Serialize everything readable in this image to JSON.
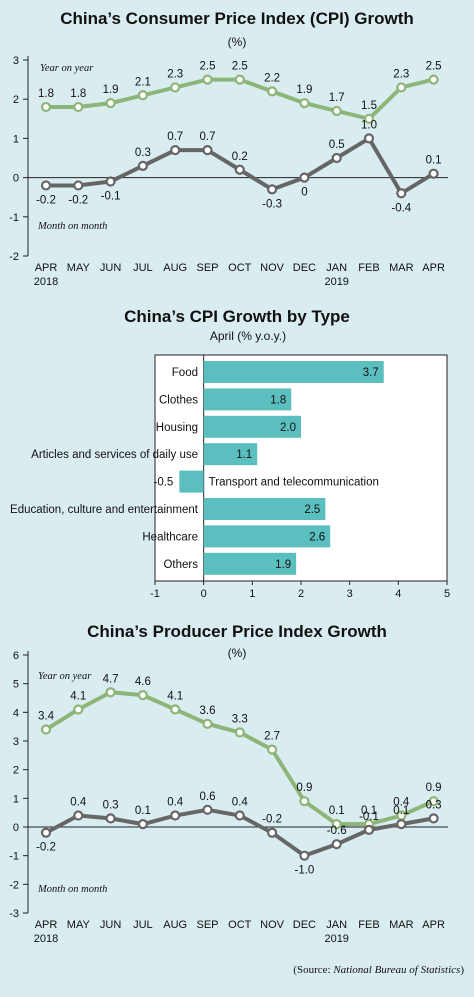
{
  "chart_data": [
    {
      "type": "line",
      "title": "China’s Consumer Price Index (CPI) Growth",
      "subtitle": "(%)",
      "categories": [
        "APR",
        "MAY",
        "JUN",
        "JUL",
        "AUG",
        "SEP",
        "OCT",
        "NOV",
        "DEC",
        "JAN",
        "FEB",
        "MAR",
        "APR"
      ],
      "year_labels": [
        {
          "index": 0,
          "text": "2018"
        },
        {
          "index": 9,
          "text": "2019"
        }
      ],
      "ylim": [
        -2,
        3
      ],
      "yticks": [
        "3",
        "2",
        "1",
        "0",
        "-1",
        "-2"
      ],
      "series": [
        {
          "name": "Year on year",
          "values": [
            1.8,
            1.8,
            1.9,
            2.1,
            2.3,
            2.5,
            2.5,
            2.2,
            1.9,
            1.7,
            1.5,
            2.3,
            2.5
          ],
          "labels": [
            "1.8",
            "1.8",
            "1.9",
            "2.1",
            "2.3",
            "2.5",
            "2.5",
            "2.2",
            "1.9",
            "1.7",
            "1.5",
            "2.3",
            "2.5"
          ],
          "color": "#8db578"
        },
        {
          "name": "Month on month",
          "values": [
            -0.2,
            -0.2,
            -0.1,
            0.3,
            0.7,
            0.7,
            0.2,
            -0.3,
            0,
            0.5,
            1.0,
            -0.4,
            0.1
          ],
          "labels": [
            "-0.2",
            "-0.2",
            "-0.1",
            "0.3",
            "0.7",
            "0.7",
            "0.2",
            "-0.3",
            "0",
            "0.5",
            "1.0",
            "-0.4",
            "0.1"
          ],
          "color": "#666666"
        }
      ],
      "legend_position": "inline"
    },
    {
      "type": "bar",
      "orientation": "horizontal",
      "title": "China’s CPI Growth by Type",
      "subtitle": "April (% y.o.y.)",
      "categories": [
        "Food",
        "Clothes",
        "Housing",
        "Articles and services of daily use",
        "Transport and telecommunication",
        "Education, culture and entertainment",
        "Healthcare",
        "Others"
      ],
      "values": [
        3.7,
        1.8,
        2.0,
        1.1,
        -0.5,
        2.5,
        2.6,
        1.9
      ],
      "value_labels": [
        "3.7",
        "1.8",
        "2.0",
        "1.1",
        "-0.5",
        "2.5",
        "2.6",
        "1.9"
      ],
      "xlim": [
        -1,
        5
      ],
      "xticks": [
        "-1",
        "0",
        "1",
        "2",
        "3",
        "4",
        "5"
      ],
      "color": "#5bbfc0"
    },
    {
      "type": "line",
      "title": "China’s Producer Price Index Growth",
      "subtitle": "(%)",
      "categories": [
        "APR",
        "MAY",
        "JUN",
        "JUL",
        "AUG",
        "SEP",
        "OCT",
        "NOV",
        "DEC",
        "JAN",
        "FEB",
        "MAR",
        "APR"
      ],
      "year_labels": [
        {
          "index": 0,
          "text": "2018"
        },
        {
          "index": 9,
          "text": "2019"
        }
      ],
      "ylim": [
        -3,
        6
      ],
      "yticks": [
        "6",
        "5",
        "4",
        "3",
        "2",
        "1",
        "0",
        "-1",
        "-2",
        "-3"
      ],
      "series": [
        {
          "name": "Year on year",
          "values": [
            3.4,
            4.1,
            4.7,
            4.6,
            4.1,
            3.6,
            3.3,
            2.7,
            0.9,
            0.1,
            0.1,
            0.4,
            0.9
          ],
          "labels": [
            "3.4",
            "4.1",
            "4.7",
            "4.6",
            "4.1",
            "3.6",
            "3.3",
            "2.7",
            "0.9",
            "0.1",
            "0.1",
            "0.4",
            "0.9"
          ],
          "color": "#8db578"
        },
        {
          "name": "Month on month",
          "values": [
            -0.2,
            0.4,
            0.3,
            0.1,
            0.4,
            0.6,
            0.4,
            -0.2,
            -1.0,
            -0.6,
            -0.1,
            0.1,
            0.3
          ],
          "labels": [
            "-0.2",
            "0.4",
            "0.3",
            "0.1",
            "0.4",
            "0.6",
            "0.4",
            "-0.2",
            "-1.0",
            "-0.6",
            "-0.1",
            "0.1",
            "0.3"
          ],
          "color": "#666666"
        }
      ],
      "legend_position": "inline"
    }
  ],
  "source_prefix": "(Source: ",
  "source_name": "National Bureau of Statistics",
  "source_suffix": ")"
}
